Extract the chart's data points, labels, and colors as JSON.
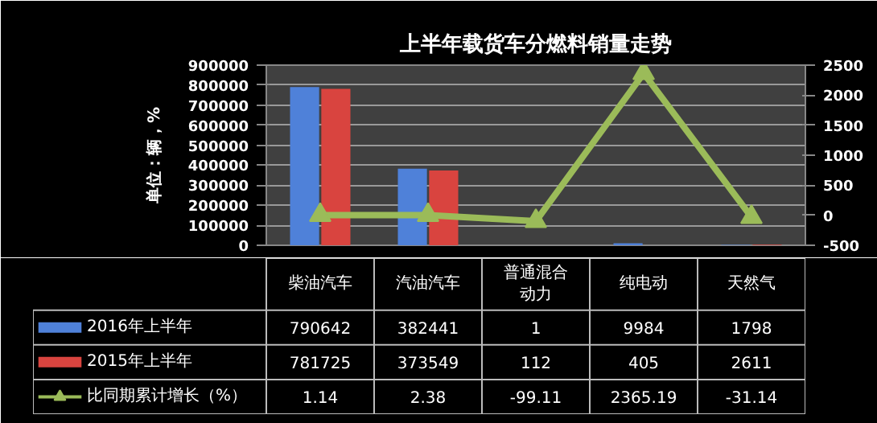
{
  "chart_data": {
    "type": "bar",
    "title": "上半年载货车分燃料销量走势",
    "ylabel": "单位：辆，%",
    "categories": [
      "柴油汽车",
      "汽油汽车",
      "普通混合动力",
      "纯电动",
      "天然气"
    ],
    "series": [
      {
        "name": "2016年上半年",
        "color": "#4f81d9",
        "values": [
          790642,
          382441,
          1,
          9984,
          1798
        ]
      },
      {
        "name": "2015年上半年",
        "color": "#d9443f",
        "values": [
          781725,
          373549,
          112,
          405,
          2611
        ]
      },
      {
        "name": "比同期累计增长（%）",
        "type": "line",
        "axis": "y2",
        "color": "#9bbb59",
        "values": [
          1.14,
          2.38,
          -99.11,
          2365.19,
          -31.14
        ]
      }
    ],
    "ylim": [
      0,
      900000
    ],
    "yticks": [
      0,
      100000,
      200000,
      300000,
      400000,
      500000,
      600000,
      700000,
      800000,
      900000
    ],
    "y2lim": [
      -500,
      2500
    ],
    "y2ticks": [
      -500,
      0,
      500,
      1000,
      1500,
      2000,
      2500
    ],
    "grid": "y",
    "legend": "bottom left",
    "marker": "triangle",
    "data_labels": true
  }
}
